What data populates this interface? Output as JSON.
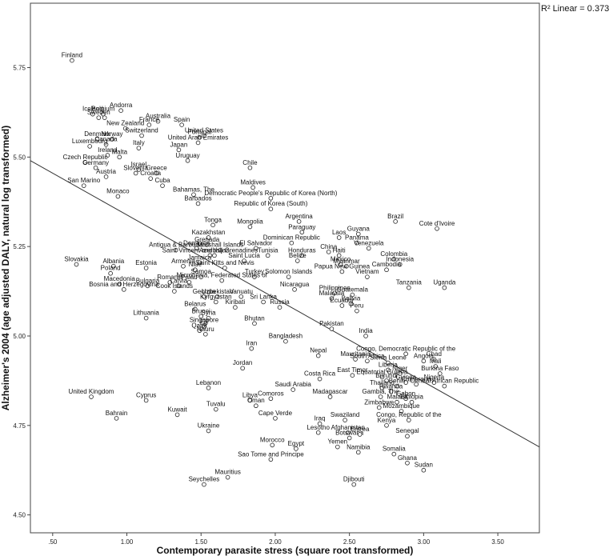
{
  "chart_data": {
    "type": "scatter",
    "title": "",
    "xlabel": "Contemporary parasite stress (square root transformed)",
    "ylabel": "Alzheimer's 2004 (age adjusted DALY, natural log transformed)",
    "xlim": [
      0.35,
      3.78
    ],
    "ylim": [
      4.45,
      5.93
    ],
    "xticks": [
      0.5,
      1.0,
      1.5,
      2.0,
      2.5,
      3.0,
      3.5
    ],
    "xtick_labels": [
      ".50",
      "1.00",
      "1.50",
      "2.00",
      "2.50",
      "3.00",
      "3.50"
    ],
    "yticks": [
      4.5,
      4.75,
      5.0,
      5.25,
      5.5,
      5.75
    ],
    "ytick_labels": [
      "4.50",
      "4.75",
      "5.00",
      "5.25",
      "5.50",
      "5.75"
    ],
    "fit_line": {
      "label": "R² Linear = 0.373",
      "x": [
        0.35,
        3.78
      ],
      "y": [
        5.49,
        4.69
      ]
    },
    "points": [
      {
        "x": 0.63,
        "y": 5.77,
        "label": "Finland"
      },
      {
        "x": 0.77,
        "y": 5.62,
        "label": "Iceland"
      },
      {
        "x": 0.84,
        "y": 5.62,
        "label": "Belgium"
      },
      {
        "x": 0.96,
        "y": 5.63,
        "label": "Andorra"
      },
      {
        "x": 0.81,
        "y": 5.61,
        "label": "Sweden"
      },
      {
        "x": 0.85,
        "y": 5.61,
        "label": ""
      },
      {
        "x": 1.21,
        "y": 5.6,
        "label": "Australia"
      },
      {
        "x": 1.37,
        "y": 5.59,
        "label": "Spain"
      },
      {
        "x": 1.15,
        "y": 5.59,
        "label": "France"
      },
      {
        "x": 0.99,
        "y": 5.58,
        "label": "New Zealand"
      },
      {
        "x": 1.52,
        "y": 5.56,
        "label": "United States"
      },
      {
        "x": 1.49,
        "y": 5.555,
        "label": "Portugal"
      },
      {
        "x": 1.1,
        "y": 5.56,
        "label": "Switzerland"
      },
      {
        "x": 0.8,
        "y": 5.55,
        "label": "Denmark"
      },
      {
        "x": 0.9,
        "y": 5.55,
        "label": "Norway"
      },
      {
        "x": 1.48,
        "y": 5.54,
        "label": "United Arab Emirates"
      },
      {
        "x": 0.86,
        "y": 5.535,
        "label": "Canada"
      },
      {
        "x": 0.75,
        "y": 5.53,
        "label": "Luxembourg"
      },
      {
        "x": 1.08,
        "y": 5.525,
        "label": "Italy"
      },
      {
        "x": 1.35,
        "y": 5.52,
        "label": "Japan"
      },
      {
        "x": 0.87,
        "y": 5.505,
        "label": "Ireland"
      },
      {
        "x": 0.95,
        "y": 5.5,
        "label": "Malta"
      },
      {
        "x": 1.41,
        "y": 5.49,
        "label": "Uruguay"
      },
      {
        "x": 0.72,
        "y": 5.485,
        "label": "Czech Republic"
      },
      {
        "x": 0.79,
        "y": 5.47,
        "label": "Germany"
      },
      {
        "x": 1.08,
        "y": 5.465,
        "label": "Israel"
      },
      {
        "x": 1.83,
        "y": 5.47,
        "label": "Chile"
      },
      {
        "x": 1.06,
        "y": 5.455,
        "label": "Slovenia"
      },
      {
        "x": 1.2,
        "y": 5.455,
        "label": "Greece"
      },
      {
        "x": 0.86,
        "y": 5.445,
        "label": "Austria"
      },
      {
        "x": 1.16,
        "y": 5.44,
        "label": "Croatia"
      },
      {
        "x": 1.24,
        "y": 5.42,
        "label": "Cuba"
      },
      {
        "x": 0.71,
        "y": 5.42,
        "label": "San Marino"
      },
      {
        "x": 0.94,
        "y": 5.39,
        "label": "Monaco"
      },
      {
        "x": 1.45,
        "y": 5.395,
        "label": "Bahamas, The"
      },
      {
        "x": 1.85,
        "y": 5.415,
        "label": "Maldives"
      },
      {
        "x": 1.97,
        "y": 5.385,
        "label": "Democratic People's Republic of Korea (North)"
      },
      {
        "x": 1.48,
        "y": 5.37,
        "label": "Barbados"
      },
      {
        "x": 1.97,
        "y": 5.355,
        "label": "Republic of Korea (South)"
      },
      {
        "x": 2.16,
        "y": 5.32,
        "label": "Argentina"
      },
      {
        "x": 1.58,
        "y": 5.31,
        "label": "Tonga"
      },
      {
        "x": 1.83,
        "y": 5.305,
        "label": "Mongolia"
      },
      {
        "x": 2.81,
        "y": 5.32,
        "label": "Brazil"
      },
      {
        "x": 3.09,
        "y": 5.3,
        "label": "Cote d'Ivoire"
      },
      {
        "x": 2.18,
        "y": 5.29,
        "label": "Paraguay"
      },
      {
        "x": 2.56,
        "y": 5.285,
        "label": "Guyana"
      },
      {
        "x": 2.43,
        "y": 5.275,
        "label": "Laos"
      },
      {
        "x": 1.55,
        "y": 5.275,
        "label": "Kazakhstan"
      },
      {
        "x": 2.55,
        "y": 5.26,
        "label": "Panama"
      },
      {
        "x": 2.11,
        "y": 5.26,
        "label": "Dominican Republic"
      },
      {
        "x": 1.54,
        "y": 5.255,
        "label": "Grenada"
      },
      {
        "x": 2.63,
        "y": 5.245,
        "label": "Venezuela"
      },
      {
        "x": 1.47,
        "y": 5.245,
        "label": "Dominica"
      },
      {
        "x": 1.87,
        "y": 5.245,
        "label": "El Salvador"
      },
      {
        "x": 1.63,
        "y": 5.24,
        "label": "Marshall Islands"
      },
      {
        "x": 1.33,
        "y": 5.24,
        "label": "Antigua & Barbuda"
      },
      {
        "x": 2.36,
        "y": 5.235,
        "label": "China"
      },
      {
        "x": 2.18,
        "y": 5.225,
        "label": "Honduras"
      },
      {
        "x": 1.95,
        "y": 5.225,
        "label": "Tunisia"
      },
      {
        "x": 1.59,
        "y": 5.225,
        "label": "Azerbaijan"
      },
      {
        "x": 1.56,
        "y": 5.225,
        "label": "Saint Vincent and the Grenadines"
      },
      {
        "x": 2.43,
        "y": 5.225,
        "label": "Haiti"
      },
      {
        "x": 2.8,
        "y": 5.215,
        "label": "Colombia"
      },
      {
        "x": 2.15,
        "y": 5.21,
        "label": "Belize"
      },
      {
        "x": 1.79,
        "y": 5.21,
        "label": "Saint Lucia"
      },
      {
        "x": 1.49,
        "y": 5.205,
        "label": "Jamaica"
      },
      {
        "x": 2.44,
        "y": 5.2,
        "label": "Mexico"
      },
      {
        "x": 0.66,
        "y": 5.2,
        "label": "Slovakia"
      },
      {
        "x": 2.84,
        "y": 5.2,
        "label": "Indonesia"
      },
      {
        "x": 1.38,
        "y": 5.195,
        "label": "Armenia"
      },
      {
        "x": 2.48,
        "y": 5.195,
        "label": "Myanmar"
      },
      {
        "x": 0.91,
        "y": 5.195,
        "label": "Albania"
      },
      {
        "x": 1.66,
        "y": 5.19,
        "label": "Saint Kitts and Nevis"
      },
      {
        "x": 1.13,
        "y": 5.19,
        "label": "Estonia"
      },
      {
        "x": 1.46,
        "y": 5.185,
        "label": "Niue"
      },
      {
        "x": 2.45,
        "y": 5.18,
        "label": "Papua New Guinea"
      },
      {
        "x": 0.89,
        "y": 5.175,
        "label": "Poland"
      },
      {
        "x": 2.75,
        "y": 5.185,
        "label": "Cambodia"
      },
      {
        "x": 1.5,
        "y": 5.165,
        "label": "Samoa"
      },
      {
        "x": 1.86,
        "y": 5.165,
        "label": "Turkey"
      },
      {
        "x": 2.09,
        "y": 5.165,
        "label": "Solomon Islands"
      },
      {
        "x": 1.42,
        "y": 5.15,
        "label": "Palau"
      },
      {
        "x": 2.62,
        "y": 5.165,
        "label": "Vietnam"
      },
      {
        "x": 1.29,
        "y": 5.15,
        "label": "Romania"
      },
      {
        "x": 1.64,
        "y": 5.155,
        "label": "Micronesia, Federated States of"
      },
      {
        "x": 0.95,
        "y": 5.145,
        "label": "Macedonia"
      },
      {
        "x": 1.35,
        "y": 5.14,
        "label": "Latvia"
      },
      {
        "x": 1.14,
        "y": 5.14,
        "label": "Bulgaria"
      },
      {
        "x": 2.13,
        "y": 5.13,
        "label": "Nicaragua"
      },
      {
        "x": 2.9,
        "y": 5.135,
        "label": "Tanzania"
      },
      {
        "x": 3.14,
        "y": 5.135,
        "label": "Uganda"
      },
      {
        "x": 0.98,
        "y": 5.13,
        "label": "Bosnia and Herzegovina"
      },
      {
        "x": 1.32,
        "y": 5.125,
        "label": "Cook Islands"
      },
      {
        "x": 2.4,
        "y": 5.12,
        "label": "Philippines"
      },
      {
        "x": 2.52,
        "y": 5.115,
        "label": "Guatemala"
      },
      {
        "x": 2.38,
        "y": 5.105,
        "label": "Malaysia"
      },
      {
        "x": 1.52,
        "y": 5.11,
        "label": "Georgia"
      },
      {
        "x": 1.61,
        "y": 5.11,
        "label": "Uzbekistan"
      },
      {
        "x": 1.77,
        "y": 5.11,
        "label": "Vanuatu"
      },
      {
        "x": 2.51,
        "y": 5.09,
        "label": "Bolivia"
      },
      {
        "x": 1.6,
        "y": 5.095,
        "label": "Kyrgyzstan"
      },
      {
        "x": 1.92,
        "y": 5.095,
        "label": "Sri Lanka"
      },
      {
        "x": 2.45,
        "y": 5.085,
        "label": "Ecuador"
      },
      {
        "x": 1.73,
        "y": 5.08,
        "label": "Kiribati"
      },
      {
        "x": 1.46,
        "y": 5.075,
        "label": "Belarus"
      },
      {
        "x": 2.03,
        "y": 5.08,
        "label": "Russia"
      },
      {
        "x": 2.55,
        "y": 5.07,
        "label": "Peru"
      },
      {
        "x": 1.13,
        "y": 5.05,
        "label": "Lithuania"
      },
      {
        "x": 1.5,
        "y": 5.055,
        "label": "Brunei"
      },
      {
        "x": 1.55,
        "y": 5.05,
        "label": "Syria"
      },
      {
        "x": 1.86,
        "y": 5.035,
        "label": "Bhutan"
      },
      {
        "x": 1.52,
        "y": 5.03,
        "label": "Singapore"
      },
      {
        "x": 1.52,
        "y": 5.025,
        "label": "Fiji"
      },
      {
        "x": 1.49,
        "y": 5.015,
        "label": "Qatar"
      },
      {
        "x": 2.38,
        "y": 5.02,
        "label": "Pakistan"
      },
      {
        "x": 1.53,
        "y": 5.005,
        "label": "Nauru"
      },
      {
        "x": 2.61,
        "y": 5.0,
        "label": "India"
      },
      {
        "x": 2.07,
        "y": 4.985,
        "label": "Bangladesh"
      },
      {
        "x": 1.84,
        "y": 4.965,
        "label": "Iran"
      },
      {
        "x": 2.88,
        "y": 4.95,
        "label": "Congo, Democratic Republic of the"
      },
      {
        "x": 2.29,
        "y": 4.945,
        "label": "Nepal"
      },
      {
        "x": 2.54,
        "y": 4.935,
        "label": "Mauritania"
      },
      {
        "x": 3.07,
        "y": 4.935,
        "label": "Chad"
      },
      {
        "x": 2.62,
        "y": 4.93,
        "label": "South Africa"
      },
      {
        "x": 3.0,
        "y": 4.93,
        "label": "Angola"
      },
      {
        "x": 2.76,
        "y": 4.925,
        "label": "Sierra Leone"
      },
      {
        "x": 3.08,
        "y": 4.915,
        "label": "Mali"
      },
      {
        "x": 1.78,
        "y": 4.91,
        "label": "Jordan"
      },
      {
        "x": 2.76,
        "y": 4.905,
        "label": "Liberia"
      },
      {
        "x": 2.84,
        "y": 4.895,
        "label": "Niger"
      },
      {
        "x": 3.11,
        "y": 4.895,
        "label": "Burkina Faso"
      },
      {
        "x": 2.52,
        "y": 4.89,
        "label": "East Timor"
      },
      {
        "x": 2.72,
        "y": 4.885,
        "label": "Equatorial Guinea"
      },
      {
        "x": 2.3,
        "y": 4.88,
        "label": "Costa Rica"
      },
      {
        "x": 2.75,
        "y": 4.875,
        "label": "Burundi"
      },
      {
        "x": 3.07,
        "y": 4.87,
        "label": "Nigeria"
      },
      {
        "x": 2.88,
        "y": 4.87,
        "label": "Guinea"
      },
      {
        "x": 2.95,
        "y": 4.865,
        "label": "Cameroon"
      },
      {
        "x": 2.82,
        "y": 4.86,
        "label": "Benin"
      },
      {
        "x": 3.14,
        "y": 4.86,
        "label": "Central African Republic"
      },
      {
        "x": 2.72,
        "y": 4.855,
        "label": "Thailand"
      },
      {
        "x": 1.55,
        "y": 4.855,
        "label": "Lebanon"
      },
      {
        "x": 2.12,
        "y": 4.85,
        "label": "Saudi Arabia"
      },
      {
        "x": 2.78,
        "y": 4.845,
        "label": "Rwanda"
      },
      {
        "x": 0.76,
        "y": 4.83,
        "label": "United Kingdom"
      },
      {
        "x": 1.97,
        "y": 4.825,
        "label": "Comoros"
      },
      {
        "x": 1.13,
        "y": 4.82,
        "label": "Cyprus"
      },
      {
        "x": 2.37,
        "y": 4.83,
        "label": "Madagascar"
      },
      {
        "x": 2.71,
        "y": 4.83,
        "label": "Gambia, The"
      },
      {
        "x": 2.88,
        "y": 4.825,
        "label": "Gabon"
      },
      {
        "x": 1.83,
        "y": 4.82,
        "label": "Libya"
      },
      {
        "x": 2.82,
        "y": 4.815,
        "label": "Malawi"
      },
      {
        "x": 2.92,
        "y": 4.815,
        "label": "Ethiopia"
      },
      {
        "x": 1.87,
        "y": 4.805,
        "label": "Oman"
      },
      {
        "x": 1.34,
        "y": 4.78,
        "label": "Kuwait"
      },
      {
        "x": 1.6,
        "y": 4.795,
        "label": "Tuvalu"
      },
      {
        "x": 2.7,
        "y": 4.8,
        "label": "Zimbabwe"
      },
      {
        "x": 2.85,
        "y": 4.79,
        "label": "Mozambique"
      },
      {
        "x": 0.93,
        "y": 4.77,
        "label": "Bahrain"
      },
      {
        "x": 2.0,
        "y": 4.77,
        "label": "Cape Verde"
      },
      {
        "x": 2.47,
        "y": 4.765,
        "label": "Swaziland"
      },
      {
        "x": 2.9,
        "y": 4.765,
        "label": "Congo, Republic of the"
      },
      {
        "x": 2.3,
        "y": 4.755,
        "label": "Iraq"
      },
      {
        "x": 2.75,
        "y": 4.75,
        "label": "Kenya"
      },
      {
        "x": 1.55,
        "y": 4.735,
        "label": "Ukraine"
      },
      {
        "x": 2.29,
        "y": 4.73,
        "label": "Lesotho"
      },
      {
        "x": 2.49,
        "y": 4.73,
        "label": "Afghanistan"
      },
      {
        "x": 2.5,
        "y": 4.715,
        "label": "Botswana"
      },
      {
        "x": 2.57,
        "y": 4.725,
        "label": "Eritrea"
      },
      {
        "x": 2.89,
        "y": 4.72,
        "label": "Senegal"
      },
      {
        "x": 1.98,
        "y": 4.695,
        "label": "Morocco"
      },
      {
        "x": 2.14,
        "y": 4.685,
        "label": "Egypt"
      },
      {
        "x": 2.42,
        "y": 4.69,
        "label": "Yemen"
      },
      {
        "x": 2.56,
        "y": 4.675,
        "label": "Namibia"
      },
      {
        "x": 2.8,
        "y": 4.67,
        "label": "Somalia"
      },
      {
        "x": 1.97,
        "y": 4.655,
        "label": "Sao Tome and Principe"
      },
      {
        "x": 2.89,
        "y": 4.645,
        "label": "Ghana"
      },
      {
        "x": 3.0,
        "y": 4.625,
        "label": "Sudan"
      },
      {
        "x": 1.68,
        "y": 4.605,
        "label": "Mauritius"
      },
      {
        "x": 1.52,
        "y": 4.585,
        "label": "Seychelles"
      },
      {
        "x": 2.53,
        "y": 4.585,
        "label": "Djibouti"
      }
    ]
  }
}
